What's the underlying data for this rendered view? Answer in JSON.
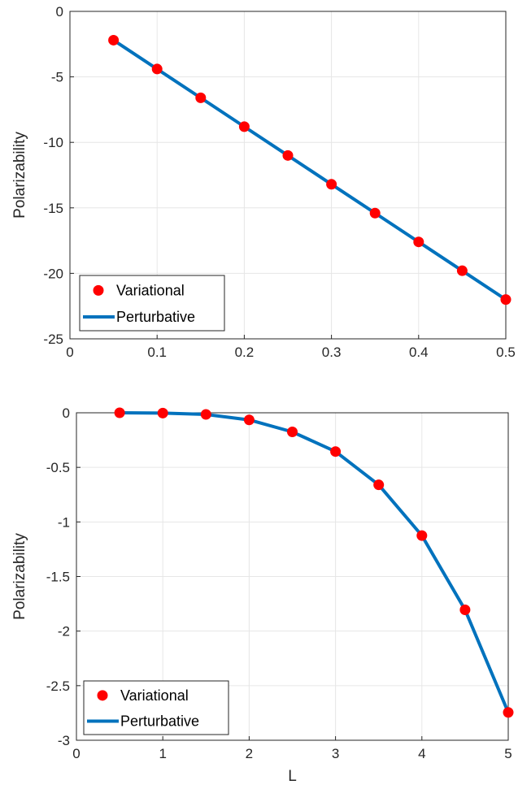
{
  "colors": {
    "variational": "#ff0000",
    "perturbative": "#0072bd",
    "grid": "#e6e6e6",
    "axis": "#262626"
  },
  "chart_data": [
    {
      "type": "line",
      "xlabel": "",
      "ylabel": "Polarizability",
      "xlim": [
        0,
        0.5
      ],
      "ylim": [
        -25,
        0
      ],
      "xticks": [
        "0",
        "0.1",
        "0.2",
        "0.3",
        "0.4",
        "0.5"
      ],
      "yticks": [
        "0",
        "-5",
        "-10",
        "-15",
        "-20",
        "-25"
      ],
      "grid": true,
      "legend_position": "bottom-left",
      "series": [
        {
          "name": "Variational",
          "style": "markers",
          "x": [
            0.05,
            0.1,
            0.15,
            0.2,
            0.25,
            0.3,
            0.35,
            0.4,
            0.45,
            0.5
          ],
          "y": [
            -2.2,
            -4.4,
            -6.6,
            -8.8,
            -11.0,
            -13.2,
            -15.4,
            -17.6,
            -19.8,
            -22.0
          ]
        },
        {
          "name": "Perturbative",
          "style": "line",
          "x": [
            0.05,
            0.1,
            0.15,
            0.2,
            0.25,
            0.3,
            0.35,
            0.4,
            0.45,
            0.5
          ],
          "y": [
            -2.2,
            -4.4,
            -6.6,
            -8.8,
            -11.0,
            -13.2,
            -15.4,
            -17.6,
            -19.8,
            -22.0
          ]
        }
      ]
    },
    {
      "type": "line",
      "xlabel": "L",
      "ylabel": "Polarizability",
      "xlim": [
        0,
        5
      ],
      "ylim": [
        -3,
        0
      ],
      "xticks": [
        "0",
        "1",
        "2",
        "3",
        "4",
        "5"
      ],
      "yticks": [
        "0",
        "-0.5",
        "-1",
        "-1.5",
        "-2",
        "-2.5",
        "-3"
      ],
      "grid": true,
      "legend_position": "bottom-left",
      "series": [
        {
          "name": "Variational",
          "style": "markers",
          "x": [
            0.5,
            1.0,
            1.5,
            2.0,
            2.5,
            3.0,
            3.5,
            4.0,
            4.5,
            5.0
          ],
          "y": [
            0.0,
            -0.003,
            -0.015,
            -0.065,
            -0.175,
            -0.355,
            -0.66,
            -1.125,
            -1.805,
            -2.745
          ]
        },
        {
          "name": "Perturbative",
          "style": "line",
          "x": [
            0.5,
            1.0,
            1.5,
            2.0,
            2.5,
            3.0,
            3.5,
            4.0,
            4.5,
            5.0
          ],
          "y": [
            0.0,
            -0.003,
            -0.015,
            -0.065,
            -0.175,
            -0.355,
            -0.66,
            -1.125,
            -1.805,
            -2.745
          ]
        }
      ]
    }
  ]
}
